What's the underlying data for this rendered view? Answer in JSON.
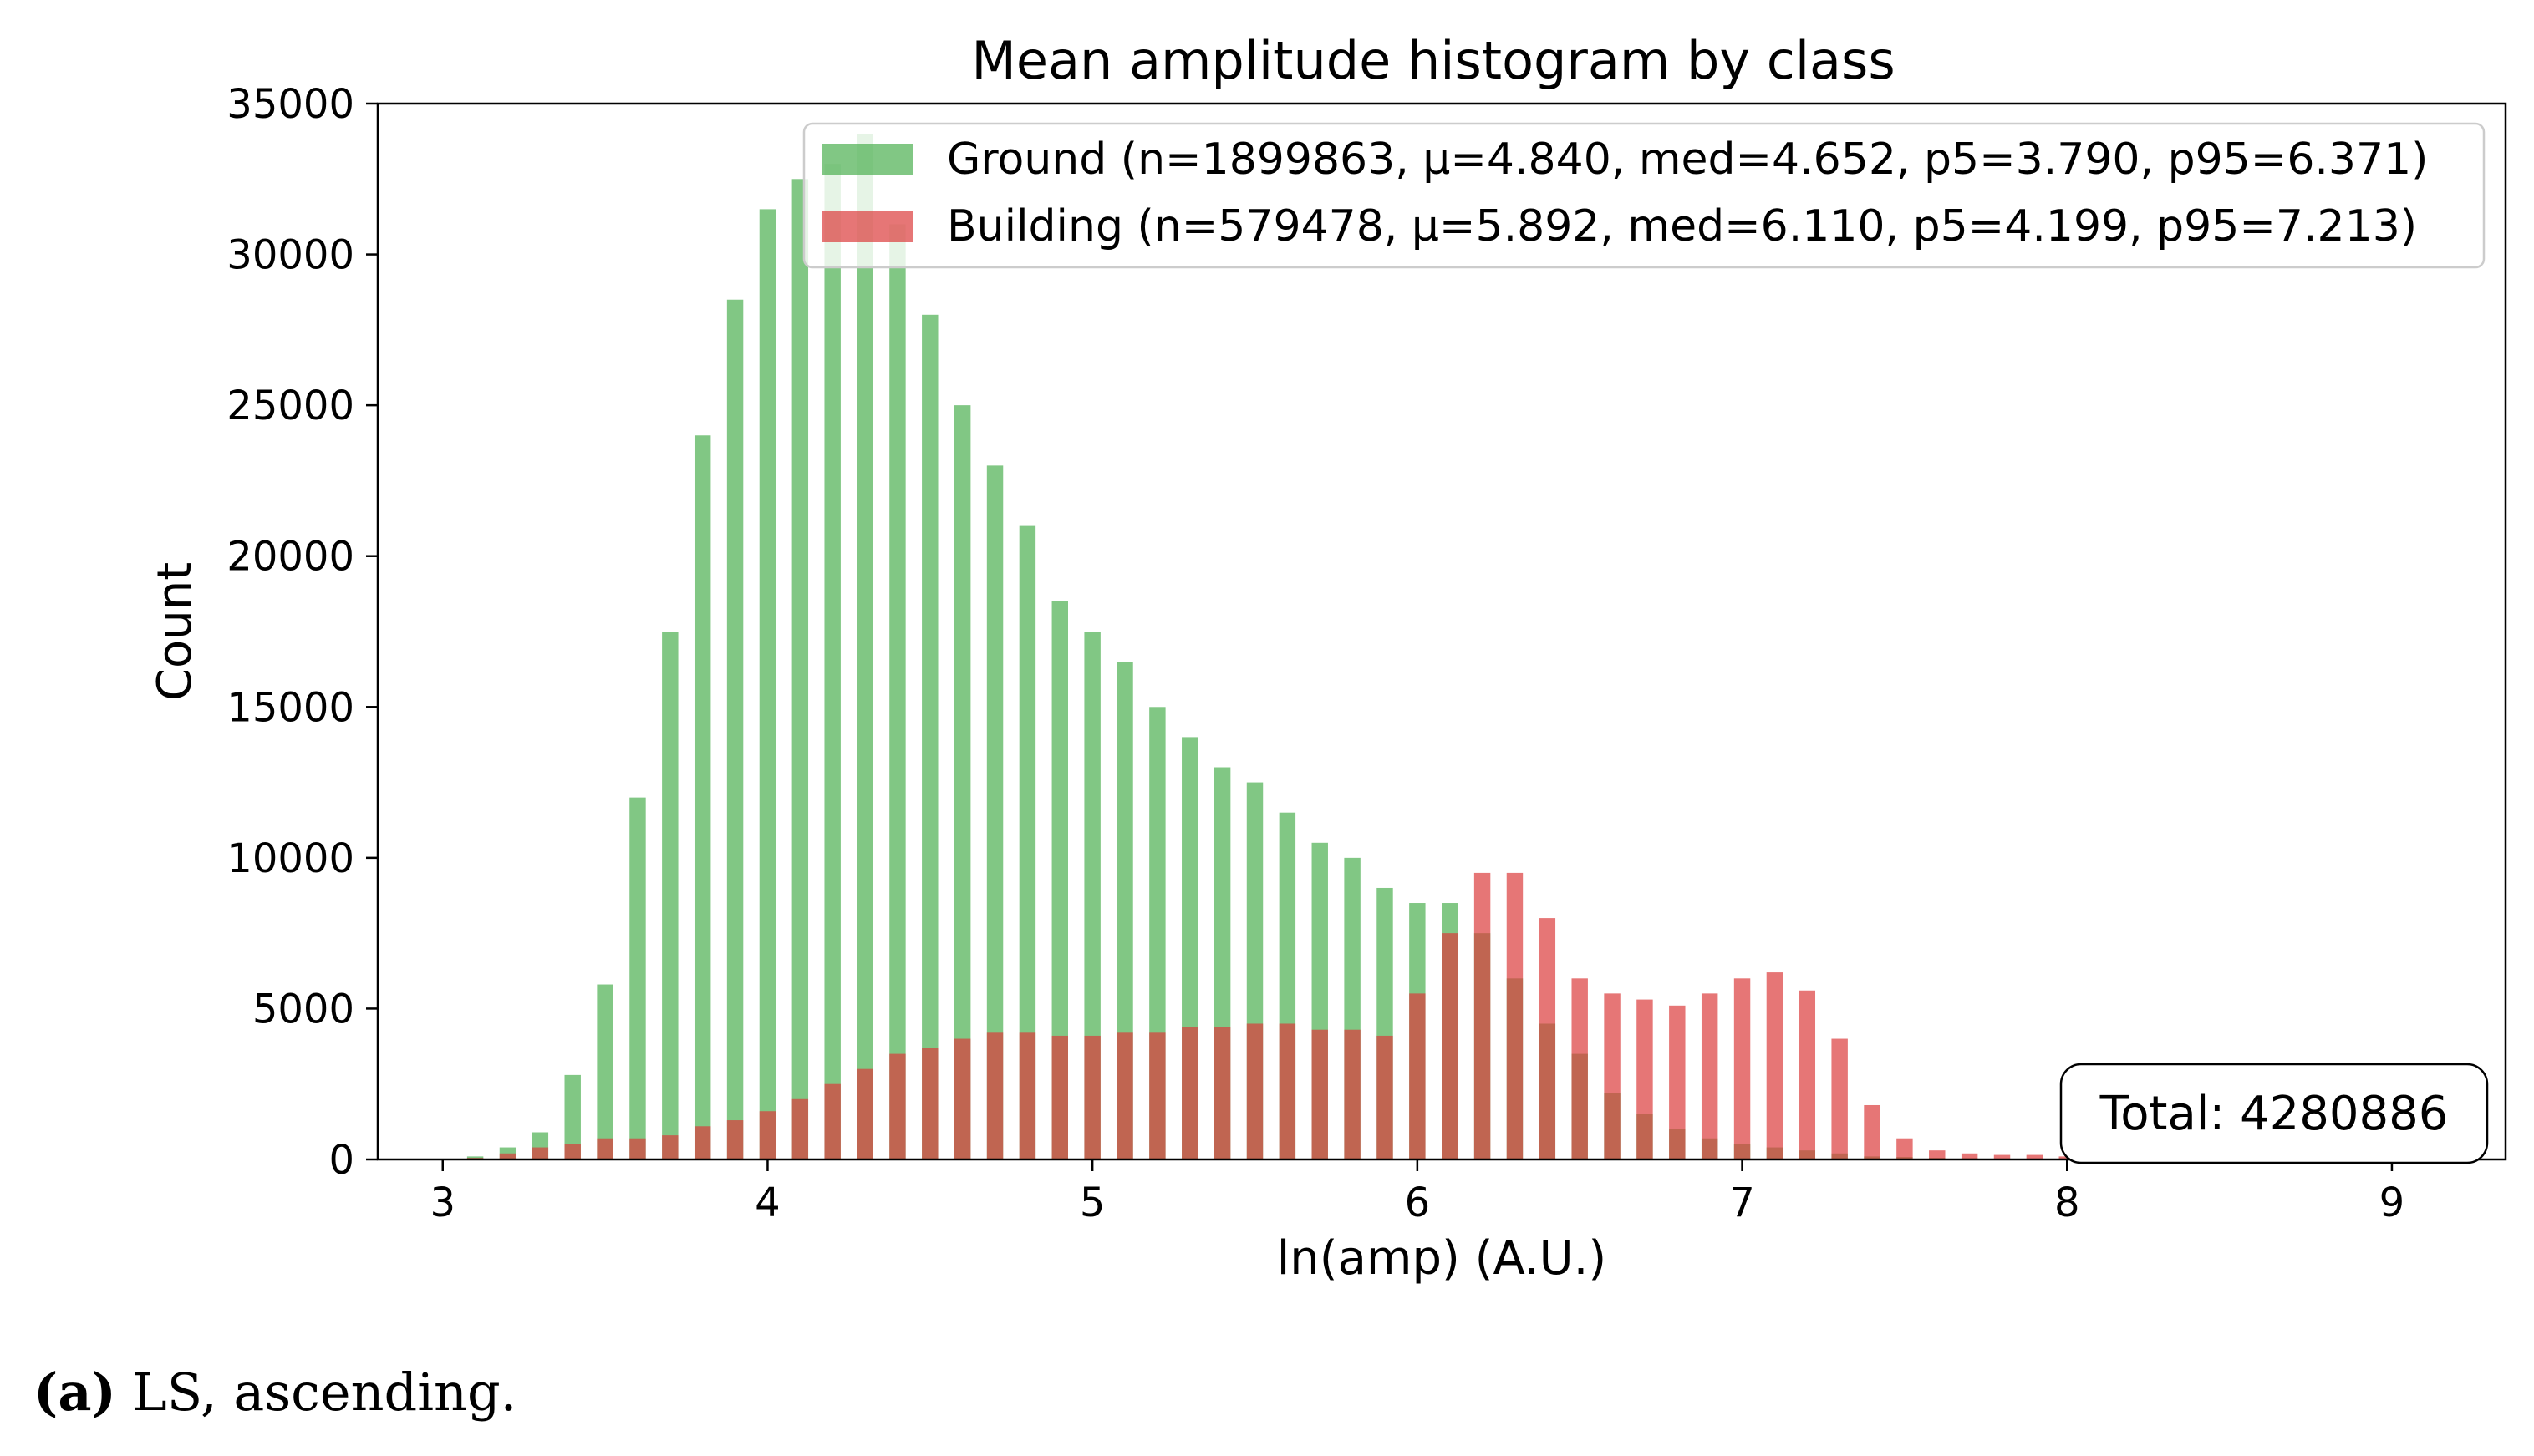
{
  "chart_data": {
    "type": "bar",
    "histogram": true,
    "title": "Mean amplitude histogram by class",
    "xlabel": "ln(amp) (A.U.)",
    "ylabel": "Count",
    "xlim": [
      2.8,
      9.35
    ],
    "ylim": [
      0,
      35000
    ],
    "xticks": [
      3,
      4,
      5,
      6,
      7,
      8,
      9
    ],
    "yticks": [
      0,
      5000,
      10000,
      15000,
      20000,
      25000,
      30000,
      35000
    ],
    "xtick_labels": [
      "3",
      "4",
      "5",
      "6",
      "7",
      "8",
      "9"
    ],
    "ytick_labels": [
      "0",
      "5000",
      "10000",
      "15000",
      "20000",
      "25000",
      "30000",
      "35000"
    ],
    "bin_width": 0.05,
    "grid": false,
    "legend_position": "top-right",
    "x": [
      3.1,
      3.2,
      3.3,
      3.4,
      3.5,
      3.6,
      3.7,
      3.8,
      3.9,
      4.0,
      4.1,
      4.2,
      4.3,
      4.4,
      4.5,
      4.6,
      4.7,
      4.8,
      4.9,
      5.0,
      5.1,
      5.2,
      5.3,
      5.4,
      5.5,
      5.6,
      5.7,
      5.8,
      5.9,
      6.0,
      6.1,
      6.2,
      6.3,
      6.4,
      6.5,
      6.6,
      6.7,
      6.8,
      6.9,
      7.0,
      7.1,
      7.2,
      7.3,
      7.4,
      7.5,
      7.6,
      7.7,
      7.8,
      7.9,
      8.0,
      8.2,
      8.4,
      8.6,
      8.8,
      9.0
    ],
    "series": [
      {
        "name": "Ground (n=1899863, μ=4.840, med=4.652, p5=3.790, p95=6.371)",
        "color": "#4caf50",
        "values": [
          100,
          400,
          900,
          2800,
          5800,
          12000,
          17500,
          24000,
          28500,
          31500,
          32500,
          33000,
          34000,
          31000,
          28000,
          25000,
          23000,
          21000,
          18500,
          17500,
          16500,
          15000,
          14000,
          13000,
          12500,
          11500,
          10500,
          10000,
          9000,
          8500,
          8500,
          7500,
          6000,
          4500,
          3500,
          2200,
          1500,
          1000,
          700,
          500,
          400,
          300,
          200,
          100,
          80,
          50,
          40,
          30,
          20,
          10,
          5,
          3,
          2,
          1,
          0
        ]
      },
      {
        "name": "Building (n=579478, μ=5.892, med=6.110, p5=4.199, p95=7.213)",
        "color": "#dc3c3c",
        "values": [
          50,
          200,
          400,
          500,
          700,
          700,
          800,
          1100,
          1300,
          1600,
          2000,
          2500,
          3000,
          3500,
          3700,
          4000,
          4200,
          4200,
          4100,
          4100,
          4200,
          4200,
          4400,
          4400,
          4500,
          4500,
          4300,
          4300,
          4100,
          5500,
          7500,
          9500,
          9500,
          8000,
          6000,
          5500,
          5300,
          5100,
          5500,
          6000,
          6200,
          5600,
          4000,
          1800,
          700,
          300,
          200,
          150,
          150,
          100,
          100,
          60,
          30,
          20,
          10
        ]
      }
    ],
    "annotation": "Total: 4280886"
  },
  "caption": {
    "label": "(a)",
    "text": " LS, ascending."
  }
}
